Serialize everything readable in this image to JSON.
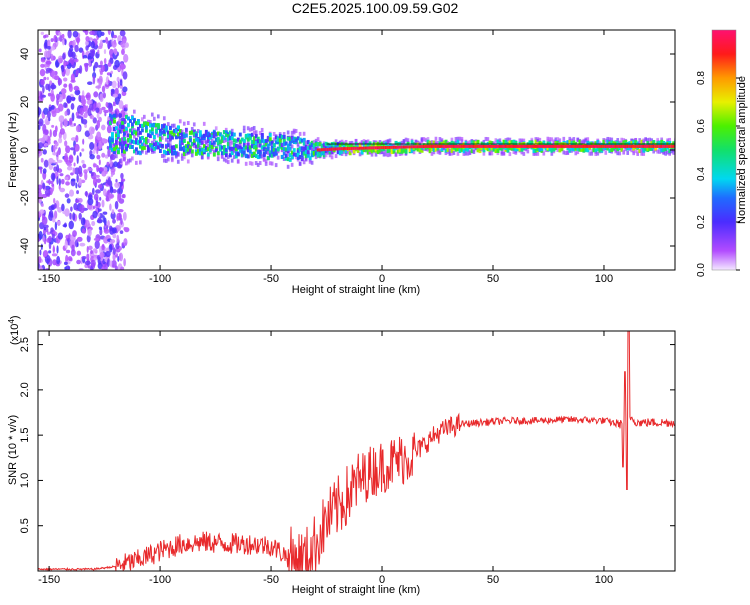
{
  "title": "C2E5.2025.100.09.59.G02",
  "colors": {
    "axis": "#000000",
    "snr_line": "#e8292b",
    "plot_bg": "#ffffff"
  },
  "chart_data": [
    {
      "type": "heatmap",
      "xlabel": "Height of straight line (km)",
      "ylabel": "Frequency (Hz)",
      "xlim": [
        -155,
        132
      ],
      "ylim": [
        -50,
        50
      ],
      "x_ticks": [
        -150,
        -100,
        -50,
        0,
        50,
        100
      ],
      "x_tick_labels": [
        "-150",
        "-100",
        "-50",
        "0",
        "50",
        "100"
      ],
      "y_ticks": [
        -40,
        -20,
        0,
        20,
        40
      ],
      "y_tick_labels": [
        "-40",
        "-20",
        "0",
        "20",
        "40"
      ],
      "grid": false,
      "colorbar": {
        "label": "Normalized spectral amplitude",
        "range": [
          0,
          1
        ],
        "ticks": [
          0.0,
          0.2,
          0.4,
          0.6,
          0.8
        ],
        "tick_labels": [
          "0.0",
          "0.2",
          "0.4",
          "0.6",
          "0.8"
        ],
        "colormap": "rainbow (violet → blue → cyan → green → yellow → red → pink)"
      },
      "features": {
        "noise_region_x": [
          -155,
          -123
        ],
        "signal_band_center_hz": [
          [
            -120,
            7
          ],
          [
            -100,
            4.5
          ],
          [
            -80,
            3
          ],
          [
            -60,
            2
          ],
          [
            -40,
            0.5
          ],
          [
            -30,
            0
          ],
          [
            -20,
            0.5
          ],
          [
            0,
            1
          ],
          [
            20,
            1.5
          ],
          [
            60,
            1.5
          ],
          [
            100,
            1.5
          ],
          [
            132,
            1.5
          ]
        ],
        "signal_band_halfwidth_hz": [
          [
            -120,
            8
          ],
          [
            -100,
            6
          ],
          [
            -80,
            5
          ],
          [
            -60,
            5
          ],
          [
            -40,
            5
          ],
          [
            -30,
            3
          ],
          [
            -20,
            2
          ],
          [
            0,
            2
          ],
          [
            40,
            2
          ],
          [
            132,
            2
          ]
        ],
        "reference_line_hz": 2.5
      }
    },
    {
      "type": "line",
      "xlabel": "Height of straight line (km)",
      "ylabel": "SNR (10 * v/v)",
      "y_multiplier_label": "(x10",
      "y_multiplier_exp": "4",
      "y_multiplier_close": ")",
      "xlim": [
        -155,
        132
      ],
      "ylim": [
        0,
        2.65
      ],
      "x_ticks": [
        -150,
        -100,
        -50,
        0,
        50,
        100
      ],
      "x_tick_labels": [
        "-150",
        "-100",
        "-50",
        "0",
        "50",
        "100"
      ],
      "y_ticks": [
        0.5,
        1.0,
        1.5,
        2.0,
        2.5
      ],
      "y_tick_labels": [
        "0.5",
        "1.0",
        "1.5",
        "2.0",
        "2.5"
      ],
      "grid": false,
      "series": [
        {
          "x": [
            -155,
            -130,
            -120,
            -110,
            -100,
            -90,
            -80,
            -70,
            -60,
            -50,
            -42,
            -35,
            -30,
            -25,
            -20,
            -15,
            -10,
            -5,
            0,
            5,
            10,
            15,
            20,
            25,
            30,
            35,
            40,
            50,
            60,
            70,
            80,
            90,
            100,
            105,
            108,
            110,
            112,
            115,
            120,
            132
          ],
          "y": [
            0.02,
            0.02,
            0.05,
            0.12,
            0.22,
            0.3,
            0.32,
            0.3,
            0.3,
            0.28,
            0.15,
            0.12,
            0.3,
            0.55,
            0.7,
            0.85,
            1.0,
            1.1,
            1.15,
            1.2,
            1.25,
            1.3,
            1.42,
            1.52,
            1.58,
            1.62,
            1.63,
            1.65,
            1.66,
            1.66,
            1.67,
            1.67,
            1.66,
            1.63,
            1.62,
            1.6,
            1.7,
            1.64,
            1.64,
            1.64
          ],
          "peak": {
            "x": 111,
            "y": 2.65
          },
          "dip": {
            "x": 111,
            "y": 0.9
          }
        }
      ]
    }
  ]
}
